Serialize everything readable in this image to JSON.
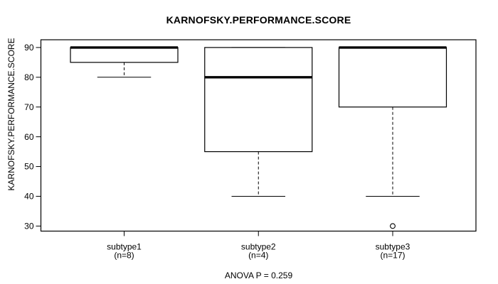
{
  "chart_data": {
    "type": "boxplot",
    "title": "KARNOFSKY.PERFORMANCE.SCORE",
    "ylabel": "KARNOFSKY.PERFORMANCE.SCORE",
    "xlabel": "",
    "footer": "ANOVA P = 0.259",
    "ylim": [
      28.3,
      92.6
    ],
    "yticks": [
      30,
      40,
      50,
      60,
      70,
      80,
      90
    ],
    "grid": false,
    "frame": true,
    "legend": null,
    "groups": [
      {
        "label": "subtype1",
        "count_label": "(n=8)",
        "n": 8,
        "whisker_low": 80,
        "q1": 85,
        "median": 90,
        "q3": 90,
        "whisker_high": 90,
        "outliers": []
      },
      {
        "label": "subtype2",
        "count_label": "(n=4)",
        "n": 4,
        "whisker_low": 40,
        "q1": 55,
        "median": 80,
        "q3": 90,
        "whisker_high": 90,
        "outliers": []
      },
      {
        "label": "subtype3",
        "count_label": "(n=17)",
        "n": 17,
        "whisker_low": 40,
        "q1": 70,
        "median": 90,
        "q3": 90,
        "whisker_high": 90,
        "outliers": [
          30
        ]
      }
    ],
    "colors": {
      "stroke": "#000000",
      "box_fill": "#ffffff",
      "background": "#ffffff"
    }
  }
}
